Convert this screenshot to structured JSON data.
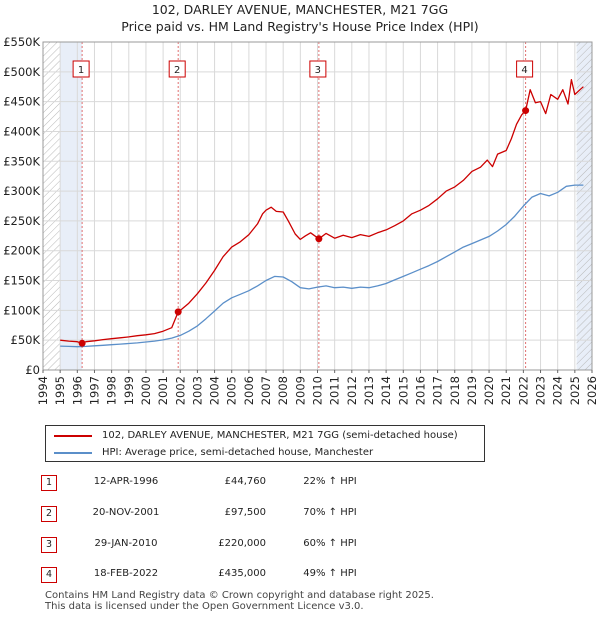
{
  "chart_data": {
    "type": "line",
    "title": "102, DARLEY AVENUE, MANCHESTER, M21 7GG",
    "subtitle": "Price paid vs. HM Land Registry's House Price Index (HPI)",
    "xlim": [
      1994,
      2026
    ],
    "ylim": [
      0,
      550000
    ],
    "x_ticks": [
      "1994",
      "1995",
      "1996",
      "1997",
      "1998",
      "1999",
      "2000",
      "2001",
      "2002",
      "2003",
      "2004",
      "2005",
      "2006",
      "2007",
      "2008",
      "2009",
      "2010",
      "2011",
      "2012",
      "2013",
      "2014",
      "2015",
      "2016",
      "2017",
      "2018",
      "2019",
      "2020",
      "2021",
      "2022",
      "2023",
      "2024",
      "2025",
      "2026"
    ],
    "y_ticks": [
      {
        "value": 0,
        "label": "£0"
      },
      {
        "value": 50000,
        "label": "£50K"
      },
      {
        "value": 100000,
        "label": "£100K"
      },
      {
        "value": 150000,
        "label": "£150K"
      },
      {
        "value": 200000,
        "label": "£200K"
      },
      {
        "value": 250000,
        "label": "£250K"
      },
      {
        "value": 300000,
        "label": "£300K"
      },
      {
        "value": 350000,
        "label": "£350K"
      },
      {
        "value": 400000,
        "label": "£400K"
      },
      {
        "value": 450000,
        "label": "£450K"
      },
      {
        "value": 500000,
        "label": "£500K"
      },
      {
        "value": 550000,
        "label": "£550K"
      }
    ],
    "grid": true,
    "data_start": 1995.0,
    "data_end": 2025.5,
    "shaded_ranges": [
      [
        1995.0,
        1996.28
      ],
      [
        2025.1,
        2026.0
      ]
    ],
    "hatched_ranges": [
      [
        1994.0,
        1995.0
      ],
      [
        2025.1,
        2026.0
      ]
    ],
    "series": [
      {
        "name": "102, DARLEY AVENUE, MANCHESTER, M21 7GG (semi-detached house)",
        "color": "#cc0000",
        "points": [
          [
            1995.0,
            50000
          ],
          [
            1995.5,
            48500
          ],
          [
            1996.0,
            47500
          ],
          [
            1996.28,
            44760
          ],
          [
            1996.5,
            47500
          ],
          [
            1997.0,
            49000
          ],
          [
            1997.5,
            51000
          ],
          [
            1998.0,
            52500
          ],
          [
            1998.5,
            54000
          ],
          [
            1999.0,
            55500
          ],
          [
            1999.5,
            57500
          ],
          [
            2000.0,
            59000
          ],
          [
            2000.5,
            61000
          ],
          [
            2001.0,
            65000
          ],
          [
            2001.5,
            71000
          ],
          [
            2001.88,
            97500
          ],
          [
            2002.0,
            100000
          ],
          [
            2002.5,
            112000
          ],
          [
            2003.0,
            128000
          ],
          [
            2003.5,
            146000
          ],
          [
            2004.0,
            167000
          ],
          [
            2004.5,
            190000
          ],
          [
            2005.0,
            206000
          ],
          [
            2005.5,
            215000
          ],
          [
            2006.0,
            227000
          ],
          [
            2006.5,
            245000
          ],
          [
            2006.8,
            262000
          ],
          [
            2007.0,
            268000
          ],
          [
            2007.3,
            273000
          ],
          [
            2007.6,
            266000
          ],
          [
            2008.0,
            265000
          ],
          [
            2008.3,
            250000
          ],
          [
            2008.7,
            228000
          ],
          [
            2009.0,
            219000
          ],
          [
            2009.3,
            225000
          ],
          [
            2009.6,
            230000
          ],
          [
            2010.08,
            220000
          ],
          [
            2010.5,
            229000
          ],
          [
            2011.0,
            221000
          ],
          [
            2011.5,
            226000
          ],
          [
            2012.0,
            222000
          ],
          [
            2012.5,
            227000
          ],
          [
            2013.0,
            224000
          ],
          [
            2013.5,
            230000
          ],
          [
            2014.0,
            235000
          ],
          [
            2014.5,
            242000
          ],
          [
            2015.0,
            250000
          ],
          [
            2015.5,
            262000
          ],
          [
            2016.0,
            268000
          ],
          [
            2016.5,
            276000
          ],
          [
            2017.0,
            287000
          ],
          [
            2017.5,
            300000
          ],
          [
            2018.0,
            307000
          ],
          [
            2018.5,
            318000
          ],
          [
            2019.0,
            333000
          ],
          [
            2019.5,
            340000
          ],
          [
            2019.9,
            352000
          ],
          [
            2020.2,
            341000
          ],
          [
            2020.5,
            362000
          ],
          [
            2021.0,
            368000
          ],
          [
            2021.3,
            388000
          ],
          [
            2021.6,
            412000
          ],
          [
            2021.9,
            428000
          ],
          [
            2022.13,
            435000
          ],
          [
            2022.4,
            470000
          ],
          [
            2022.7,
            448000
          ],
          [
            2023.0,
            450000
          ],
          [
            2023.3,
            430000
          ],
          [
            2023.6,
            462000
          ],
          [
            2024.0,
            454000
          ],
          [
            2024.3,
            470000
          ],
          [
            2024.6,
            446000
          ],
          [
            2024.8,
            487000
          ],
          [
            2025.0,
            462000
          ],
          [
            2025.3,
            470000
          ],
          [
            2025.5,
            475000
          ]
        ]
      },
      {
        "name": "HPI: Average price, semi-detached house, Manchester",
        "color": "#5b8fc9",
        "points": [
          [
            1995.0,
            40000
          ],
          [
            1995.5,
            39500
          ],
          [
            1996.0,
            39000
          ],
          [
            1996.5,
            39500
          ],
          [
            1997.0,
            40500
          ],
          [
            1997.5,
            41500
          ],
          [
            1998.0,
            42500
          ],
          [
            1998.5,
            43500
          ],
          [
            1999.0,
            44500
          ],
          [
            1999.5,
            45500
          ],
          [
            2000.0,
            47000
          ],
          [
            2000.5,
            48500
          ],
          [
            2001.0,
            50500
          ],
          [
            2001.5,
            53500
          ],
          [
            2002.0,
            58000
          ],
          [
            2002.5,
            65000
          ],
          [
            2003.0,
            74000
          ],
          [
            2003.5,
            86000
          ],
          [
            2004.0,
            99000
          ],
          [
            2004.5,
            112000
          ],
          [
            2005.0,
            121000
          ],
          [
            2005.5,
            127000
          ],
          [
            2006.0,
            133000
          ],
          [
            2006.5,
            141000
          ],
          [
            2007.0,
            150000
          ],
          [
            2007.5,
            157000
          ],
          [
            2008.0,
            156000
          ],
          [
            2008.5,
            148000
          ],
          [
            2009.0,
            138000
          ],
          [
            2009.5,
            136000
          ],
          [
            2010.0,
            139000
          ],
          [
            2010.5,
            141000
          ],
          [
            2011.0,
            138000
          ],
          [
            2011.5,
            139000
          ],
          [
            2012.0,
            137000
          ],
          [
            2012.5,
            139000
          ],
          [
            2013.0,
            138000
          ],
          [
            2013.5,
            141000
          ],
          [
            2014.0,
            145000
          ],
          [
            2014.5,
            151000
          ],
          [
            2015.0,
            157000
          ],
          [
            2015.5,
            163000
          ],
          [
            2016.0,
            169000
          ],
          [
            2016.5,
            175000
          ],
          [
            2017.0,
            182000
          ],
          [
            2017.5,
            190000
          ],
          [
            2018.0,
            198000
          ],
          [
            2018.5,
            206000
          ],
          [
            2019.0,
            212000
          ],
          [
            2019.5,
            218000
          ],
          [
            2020.0,
            224000
          ],
          [
            2020.5,
            233000
          ],
          [
            2021.0,
            244000
          ],
          [
            2021.5,
            258000
          ],
          [
            2022.0,
            275000
          ],
          [
            2022.5,
            290000
          ],
          [
            2023.0,
            296000
          ],
          [
            2023.5,
            292000
          ],
          [
            2024.0,
            298000
          ],
          [
            2024.5,
            308000
          ],
          [
            2025.0,
            310000
          ],
          [
            2025.5,
            310000
          ]
        ]
      }
    ],
    "sales": [
      {
        "num": "1",
        "x": 1996.28,
        "price": 44760,
        "date": "12-APR-1996",
        "price_label": "£44,760",
        "hpi": "22% ↑ HPI"
      },
      {
        "num": "2",
        "x": 2001.88,
        "price": 97500,
        "date": "20-NOV-2001",
        "price_label": "£97,500",
        "hpi": "70% ↑ HPI"
      },
      {
        "num": "3",
        "x": 2010.08,
        "price": 220000,
        "date": "29-JAN-2010",
        "price_label": "£220,000",
        "hpi": "60% ↑ HPI"
      },
      {
        "num": "4",
        "x": 2022.13,
        "price": 435000,
        "date": "18-FEB-2022",
        "price_label": "£435,000",
        "hpi": "49% ↑ HPI"
      }
    ]
  },
  "legend": {
    "property_label": "102, DARLEY AVENUE, MANCHESTER, M21 7GG (semi-detached house)",
    "hpi_label": "HPI: Average price, semi-detached house, Manchester"
  },
  "footer": {
    "line1": "Contains HM Land Registry data © Crown copyright and database right 2025.",
    "line2": "This data is licensed under the Open Government Licence v3.0."
  }
}
